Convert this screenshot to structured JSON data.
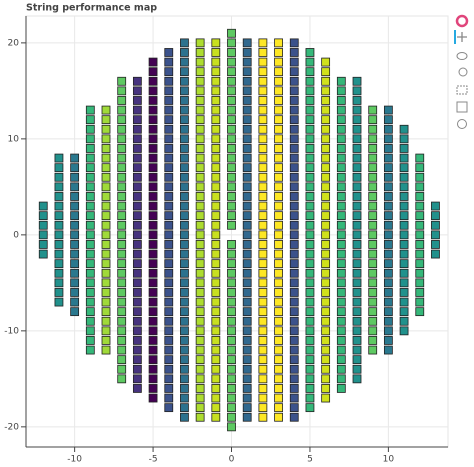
{
  "chart_data": {
    "type": "scatter",
    "title": "String performance map",
    "xlim": [
      -13.1,
      13.8
    ],
    "ylim": [
      -22.1,
      22.8
    ],
    "xticks": [
      -10,
      -5,
      0,
      5,
      10
    ],
    "yticks": [
      -20,
      -10,
      0,
      10,
      20
    ],
    "grid": true,
    "series": [
      {
        "x": -12,
        "color": "#21918c",
        "values": [
          3,
          2,
          1,
          0,
          -1,
          -2
        ]
      },
      {
        "x": -11,
        "color": "#21918c",
        "values": [
          8,
          7,
          6,
          5,
          4,
          3,
          2,
          1,
          0,
          -1,
          -2,
          -3,
          -4,
          -5,
          -6,
          -7
        ]
      },
      {
        "x": -10,
        "color": "#2a788e",
        "values": [
          8,
          7,
          6,
          5,
          4,
          3,
          2,
          1,
          0,
          -1,
          -2,
          -3,
          -4,
          -5,
          -6,
          -7,
          -8
        ]
      },
      {
        "x": -9,
        "color": "#35b779",
        "values": [
          13,
          12,
          11,
          10,
          9,
          8,
          7,
          6,
          5,
          4,
          3,
          2,
          1,
          0,
          -1,
          -2,
          -3,
          -4,
          -5,
          -6,
          -7,
          -8,
          -9,
          -10,
          -11,
          -12
        ]
      },
      {
        "x": -8,
        "color": "#a0da39",
        "values": [
          13,
          12,
          11,
          10,
          9,
          8,
          7,
          6,
          5,
          4,
          3,
          2,
          1,
          0,
          -1,
          -2,
          -3,
          -4,
          -5,
          -6,
          -7,
          -8,
          -9,
          -10,
          -11,
          -12
        ]
      },
      {
        "x": -7,
        "color": "#5ec962",
        "values": [
          16,
          15,
          14,
          13,
          12,
          11,
          10,
          9,
          8,
          7,
          6,
          5,
          4,
          3,
          2,
          1,
          0,
          -1,
          -2,
          -3,
          -4,
          -5,
          -6,
          -7,
          -8,
          -9,
          -10,
          -11,
          -12,
          -13,
          -14,
          -15
        ]
      },
      {
        "x": -6,
        "color": "#46337e",
        "values": [
          16,
          15,
          14,
          13,
          12,
          11,
          10,
          9,
          8,
          7,
          6,
          5,
          4,
          3,
          2,
          1,
          0,
          -1,
          -2,
          -3,
          -4,
          -5,
          -6,
          -7,
          -8,
          -9,
          -10,
          -11,
          -12,
          -13,
          -14,
          -15,
          -16
        ]
      },
      {
        "x": -5,
        "color": "#440154",
        "values": [
          18,
          17,
          16,
          15,
          14,
          13,
          12,
          11,
          10,
          9,
          8,
          7,
          6,
          5,
          4,
          3,
          2,
          1,
          0,
          -1,
          -2,
          -3,
          -4,
          -5,
          -6,
          -7,
          -8,
          -9,
          -10,
          -11,
          -12,
          -13,
          -14,
          -15,
          -16,
          -17
        ]
      },
      {
        "x": -4,
        "color": "#3b528b",
        "values": [
          19,
          18,
          17,
          16,
          15,
          14,
          13,
          12,
          11,
          10,
          9,
          8,
          7,
          6,
          5,
          4,
          3,
          2,
          1,
          0,
          -1,
          -2,
          -3,
          -4,
          -5,
          -6,
          -7,
          -8,
          -9,
          -10,
          -11,
          -12,
          -13,
          -14,
          -15,
          -16,
          -17,
          -18
        ]
      },
      {
        "x": -3,
        "color": "#2c728e",
        "values": [
          20,
          19,
          18,
          17,
          16,
          15,
          14,
          13,
          12,
          11,
          10,
          9,
          8,
          7,
          6,
          5,
          4,
          3,
          2,
          1,
          0,
          -1,
          -2,
          -3,
          -4,
          -5,
          -6,
          -7,
          -8,
          -9,
          -10,
          -11,
          -12,
          -13,
          -14,
          -15,
          -16,
          -17,
          -18,
          -19
        ]
      },
      {
        "x": -2,
        "color": "#addc30",
        "values": [
          20,
          19,
          18,
          17,
          16,
          15,
          14,
          13,
          12,
          11,
          10,
          9,
          8,
          7,
          6,
          5,
          4,
          3,
          2,
          1,
          0,
          -1,
          -2,
          -3,
          -4,
          -5,
          -6,
          -7,
          -8,
          -9,
          -10,
          -11,
          -12,
          -13,
          -14,
          -15,
          -16,
          -17,
          -18,
          -19
        ]
      },
      {
        "x": -1,
        "color": "#c8e020",
        "values": [
          20,
          19,
          18,
          17,
          16,
          15,
          14,
          13,
          12,
          11,
          10,
          9,
          8,
          7,
          6,
          5,
          4,
          3,
          2,
          1,
          0,
          -1,
          -2,
          -3,
          -4,
          -5,
          -6,
          -7,
          -8,
          -9,
          -10,
          -11,
          -12,
          -13,
          -14,
          -15,
          -16,
          -17,
          -18,
          -19
        ]
      },
      {
        "x": 0,
        "color": "#5ec962",
        "values": [
          21,
          20,
          19,
          18,
          17,
          16,
          15,
          14,
          13,
          12,
          11,
          10,
          9,
          8,
          7,
          6,
          5,
          4,
          3,
          2,
          1,
          -1,
          -2,
          -3,
          -4,
          -5,
          -6,
          -7,
          -8,
          -9,
          -10,
          -11,
          -12,
          -13,
          -14,
          -15,
          -16,
          -17,
          -18,
          -19,
          -20
        ]
      },
      {
        "x": 1,
        "color": "#31688e",
        "values": [
          20,
          19,
          18,
          17,
          16,
          15,
          14,
          13,
          12,
          11,
          10,
          9,
          8,
          7,
          6,
          5,
          4,
          3,
          2,
          1,
          0,
          -1,
          -2,
          -3,
          -4,
          -5,
          -6,
          -7,
          -8,
          -9,
          -10,
          -11,
          -12,
          -13,
          -14,
          -15,
          -16,
          -17,
          -18,
          -19
        ]
      },
      {
        "x": 2,
        "color": "#fde725",
        "values": [
          20,
          19,
          18,
          17,
          16,
          15,
          14,
          13,
          12,
          11,
          10,
          9,
          8,
          7,
          6,
          5,
          4,
          3,
          2,
          1,
          0,
          -1,
          -2,
          -3,
          -4,
          -5,
          -6,
          -7,
          -8,
          -9,
          -10,
          -11,
          -12,
          -13,
          -14,
          -15,
          -16,
          -17,
          -18,
          -19
        ]
      },
      {
        "x": 3,
        "color": "#fde725",
        "values": [
          20,
          19,
          18,
          17,
          16,
          15,
          14,
          13,
          12,
          11,
          10,
          9,
          8,
          7,
          6,
          5,
          4,
          3,
          2,
          1,
          0,
          -1,
          -2,
          -3,
          -4,
          -5,
          -6,
          -7,
          -8,
          -9,
          -10,
          -11,
          -12,
          -13,
          -14,
          -15,
          -16,
          -17,
          -18,
          -19
        ]
      },
      {
        "x": 4,
        "color": "#3b528b",
        "values": [
          20,
          19,
          18,
          17,
          16,
          15,
          14,
          13,
          12,
          11,
          10,
          9,
          8,
          7,
          6,
          5,
          4,
          3,
          2,
          1,
          0,
          -1,
          -2,
          -3,
          -4,
          -5,
          -6,
          -7,
          -8,
          -9,
          -10,
          -11,
          -12,
          -13,
          -14,
          -15,
          -16,
          -17,
          -18,
          -19
        ]
      },
      {
        "x": 5,
        "color": "#35b779",
        "values": [
          19,
          18,
          17,
          16,
          15,
          14,
          13,
          12,
          11,
          10,
          9,
          8,
          7,
          6,
          5,
          4,
          3,
          2,
          1,
          0,
          -1,
          -2,
          -3,
          -4,
          -5,
          -6,
          -7,
          -8,
          -9,
          -10,
          -11,
          -12,
          -13,
          -14,
          -15,
          -16,
          -17,
          -18
        ]
      },
      {
        "x": 6,
        "color": "#d0e11c",
        "values": [
          18,
          17,
          16,
          15,
          14,
          13,
          12,
          11,
          10,
          9,
          8,
          7,
          6,
          5,
          4,
          3,
          2,
          1,
          0,
          -1,
          -2,
          -3,
          -4,
          -5,
          -6,
          -7,
          -8,
          -9,
          -10,
          -11,
          -12,
          -13,
          -14,
          -15,
          -16,
          -17
        ]
      },
      {
        "x": 7,
        "color": "#35b779",
        "values": [
          16,
          15,
          14,
          13,
          12,
          11,
          10,
          9,
          8,
          7,
          6,
          5,
          4,
          3,
          2,
          1,
          0,
          -1,
          -2,
          -3,
          -4,
          -5,
          -6,
          -7,
          -8,
          -9,
          -10,
          -11,
          -12,
          -13,
          -14,
          -15,
          -16
        ]
      },
      {
        "x": 8,
        "color": "#21918c",
        "values": [
          16,
          15,
          14,
          13,
          12,
          11,
          10,
          9,
          8,
          7,
          6,
          5,
          4,
          3,
          2,
          1,
          0,
          -1,
          -2,
          -3,
          -4,
          -5,
          -6,
          -7,
          -8,
          -9,
          -10,
          -11,
          -12,
          -13,
          -14,
          -15
        ]
      },
      {
        "x": 9,
        "color": "#5ec962",
        "values": [
          13,
          12,
          11,
          10,
          9,
          8,
          7,
          6,
          5,
          4,
          3,
          2,
          1,
          0,
          -1,
          -2,
          -3,
          -4,
          -5,
          -6,
          -7,
          -8,
          -9,
          -10,
          -11,
          -12
        ]
      },
      {
        "x": 10,
        "color": "#2a788e",
        "values": [
          13,
          12,
          11,
          10,
          9,
          8,
          7,
          6,
          5,
          4,
          3,
          2,
          1,
          0,
          -1,
          -2,
          -3,
          -4,
          -5,
          -6,
          -7,
          -8,
          -9,
          -10,
          -11,
          -12
        ]
      },
      {
        "x": 11,
        "color": "#21918c",
        "values": [
          11,
          10,
          9,
          8,
          7,
          6,
          5,
          4,
          3,
          2,
          1,
          0,
          -1,
          -2,
          -3,
          -4,
          -5,
          -6,
          -7,
          -8,
          -9,
          -10
        ]
      },
      {
        "x": 12,
        "color": "#35b779",
        "values": [
          8,
          7,
          6,
          5,
          4,
          3,
          2,
          1,
          0,
          -1,
          -2,
          -3,
          -4,
          -5,
          -6,
          -7,
          -8
        ]
      },
      {
        "x": 13,
        "color": "#21918c",
        "values": [
          3,
          2,
          1,
          0,
          -1,
          -2
        ]
      }
    ]
  }
}
